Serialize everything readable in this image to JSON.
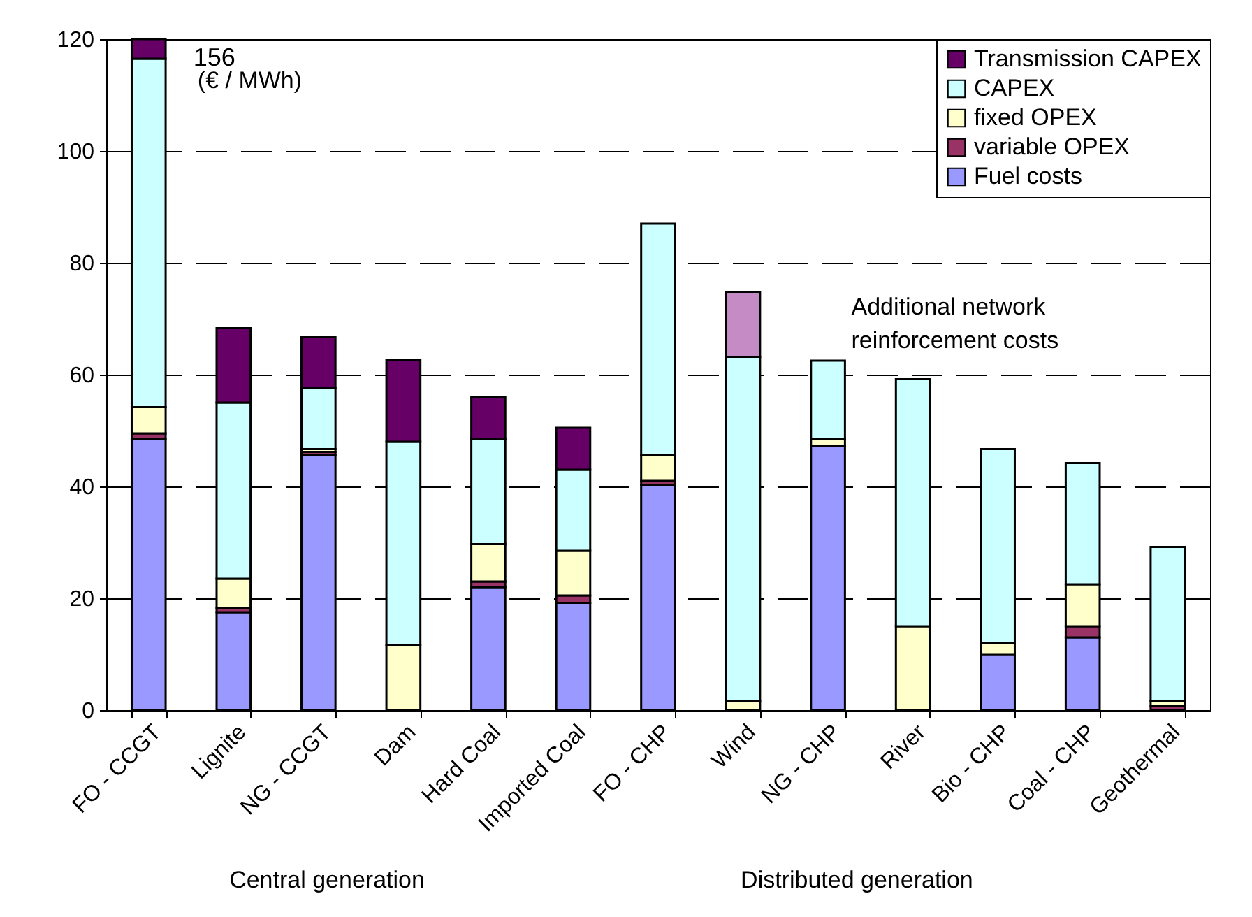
{
  "chart_data": {
    "type": "bar",
    "stacked": true,
    "categories": [
      "FO - CCGT",
      "Lignite",
      "NG - CCGT",
      "Dam",
      "Hard Coal",
      "Imported Coal",
      "FO - CHP",
      "Wind",
      "NG - CHP",
      "River",
      "Bio - CHP",
      "Coal - CHP",
      "Geothermal"
    ],
    "series": [
      {
        "name": "Fuel costs",
        "color": "#9999ff",
        "values": [
          48.5,
          17.5,
          45.7,
          null,
          22,
          19.2,
          40.2,
          null,
          47.2,
          null,
          10,
          13,
          null
        ]
      },
      {
        "name": "variable OPEX",
        "color": "#993366",
        "values": [
          1,
          0.7,
          0.5,
          null,
          1,
          1.3,
          0.8,
          null,
          null,
          null,
          null,
          2,
          0.7
        ]
      },
      {
        "name": "fixed OPEX",
        "color": "#ffffcc",
        "values": [
          4.7,
          5.3,
          0.5,
          11.7,
          6.7,
          8,
          4.7,
          1.7,
          1.3,
          15,
          2,
          7.5,
          1
        ]
      },
      {
        "name": "CAPEX",
        "color": "#ccffff",
        "values": [
          62.3,
          31.5,
          11,
          36.3,
          18.8,
          14.5,
          41.3,
          61.5,
          14,
          44.2,
          34.7,
          21.7,
          27.5
        ]
      },
      {
        "name": "Transmission CAPEX",
        "color": "#660066",
        "values": [
          3.5,
          13.3,
          9,
          14.7,
          7.5,
          7.5,
          null,
          null,
          null,
          null,
          null,
          null,
          null
        ]
      },
      {
        "color": "#c48bc4",
        "values": [
          null,
          null,
          null,
          null,
          null,
          null,
          null,
          11.6,
          null,
          null,
          null,
          null,
          null
        ]
      }
    ],
    "ylim": [
      0,
      120
    ],
    "yticks": [
      0,
      20,
      40,
      60,
      80,
      100,
      120
    ],
    "grid": "y",
    "legend": "top right",
    "annotations": [
      {
        "text": "156",
        "x": "FO - CCGT",
        "y": 120
      },
      "Additional network reinforcement costs",
      "(€ / MWh)",
      "Central generation",
      "Distributed generation"
    ]
  }
}
